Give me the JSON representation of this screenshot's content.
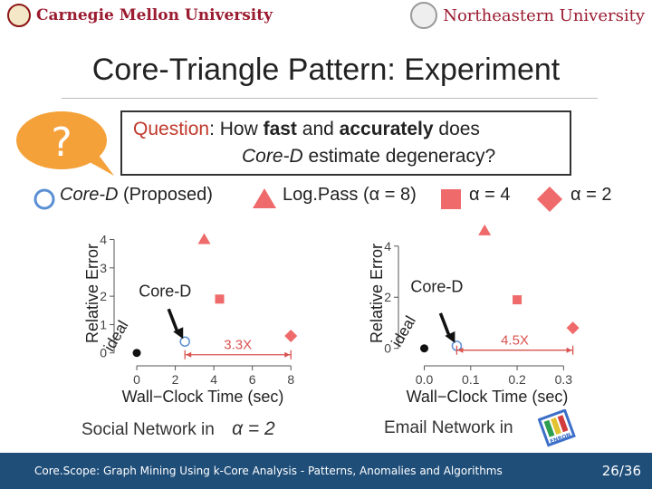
{
  "header": {
    "left_logo": "Carnegie Mellon University",
    "right_logo": "Northeastern University"
  },
  "slide": {
    "title": "Core-Triangle Pattern: Experiment",
    "question_icon": "?",
    "question": {
      "label": "Question",
      "sep": ": How ",
      "w1": "fast",
      "mid": " and ",
      "w2": "accurately",
      "end": " does",
      "l2_core": "Core-D",
      "l2_rest": " estimate degeneracy?"
    }
  },
  "legend": {
    "coreD": "Core-D",
    "coreD_suffix": " (Proposed)",
    "logpass": "Log.Pass (α = 8)",
    "alpha4": "α = 4",
    "alpha2": "α = 2"
  },
  "colors": {
    "coreD": "#5b8fd4",
    "series": "#ef6a6a",
    "ideal": "#111111",
    "speedup": "#d9534f",
    "footer": "#1f4e79",
    "question": "#c0392b",
    "bubble": "#f4a13a"
  },
  "chart_data": [
    {
      "type": "scatter",
      "xlabel": "Wall−Clock Time (sec)",
      "ylabel": "Relative Error",
      "xticks": [
        0,
        2,
        4,
        6,
        8
      ],
      "yticks": [
        0,
        1,
        2,
        3,
        4
      ],
      "xlim": [
        -0.8,
        8.6
      ],
      "ylim": [
        -0.2,
        4.4
      ],
      "points": [
        {
          "series": "ideal",
          "x": 0,
          "y": 0
        },
        {
          "series": "coreD",
          "x": 2.5,
          "y": 0.4
        },
        {
          "series": "logpass",
          "x": 3.5,
          "y": 4
        },
        {
          "series": "alpha4",
          "x": 4.3,
          "y": 1.9
        },
        {
          "series": "alpha2",
          "x": 8,
          "y": 0.6
        }
      ],
      "coreD_label": "Core-D",
      "ideal_label": "ideal",
      "speedup": {
        "label": "3.3X",
        "from": 2.5,
        "to": 8
      },
      "caption": "Social Network in",
      "caption_math": "α = 2"
    },
    {
      "type": "scatter",
      "xlabel": "Wall−Clock Time (sec)",
      "ylabel": "Relative Error",
      "xticks": [
        0.0,
        0.1,
        0.2,
        0.3
      ],
      "xtick_labels": [
        "0.0",
        "0.1",
        "0.2",
        "0.3"
      ],
      "yticks": [
        0,
        2,
        4
      ],
      "ylim": [
        -0.4,
        4.7
      ],
      "xlim": [
        -0.04,
        0.35
      ],
      "points": [
        {
          "series": "ideal",
          "x": 0,
          "y": 0
        },
        {
          "series": "coreD",
          "x": 0.07,
          "y": 0.1
        },
        {
          "series": "logpass",
          "x": 0.13,
          "y": 4.6
        },
        {
          "series": "alpha4",
          "x": 0.2,
          "y": 1.9
        },
        {
          "series": "alpha2",
          "x": 0.32,
          "y": 0.8
        }
      ],
      "coreD_label": "Core-D",
      "ideal_label": "ideal",
      "speedup": {
        "label": "4.5X",
        "from": 0.07,
        "to": 0.32
      },
      "caption": "Email Network in",
      "caption_logo": "ENRON"
    }
  ],
  "footer": {
    "text": "Core.Scope: Graph Mining Using k-Core Analysis - Patterns, Anomalies and Algorithms",
    "page": "26/36"
  }
}
